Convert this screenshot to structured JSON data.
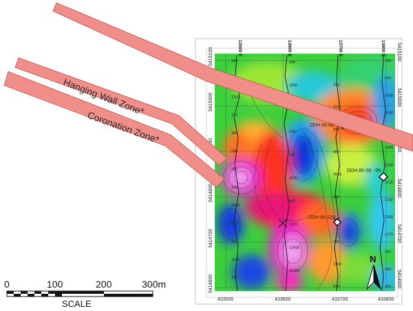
{
  "zones": [
    {
      "label": "Hanging Wall Zone*"
    },
    {
      "label": "Coronation Zone*"
    }
  ],
  "map": {
    "northing_labels": [
      "5415100",
      "5415000",
      "5414900",
      "5414800",
      "5414700",
      "5414600"
    ],
    "easting_labels": [
      "433500",
      "433600",
      "433700",
      "433800"
    ],
    "line_labels": [
      "13500 E",
      "13600 E",
      "13700 E",
      "13800 E"
    ],
    "drill_holes": [
      {
        "label": "DDH 85-66"
      },
      {
        "label": "DDH 85-59, -56"
      },
      {
        "label": "DDH 89-229"
      }
    ],
    "sample_values": {
      "line1": [
        "280",
        "270",
        "1110",
        "370",
        "350",
        "280",
        "250",
        "100",
        "2500",
        "810",
        "860",
        "1240",
        "700"
      ],
      "line2": [
        "290",
        "1050",
        "460",
        "370",
        "530",
        "1000",
        "420",
        "1120",
        "12500",
        "10300"
      ],
      "line3": [
        "370",
        "470",
        "550",
        "860",
        "2600",
        "640",
        "590",
        "720",
        "1160",
        "540"
      ],
      "line4": [
        "290",
        "640",
        "2440",
        "2250",
        "1110",
        "1340",
        "1320",
        "1130",
        "1130",
        "1360",
        "1270",
        "990",
        "560",
        "330"
      ]
    }
  },
  "scale": {
    "ticks": [
      "0",
      "100",
      "200",
      "300m"
    ],
    "caption": "SCALE"
  },
  "north_arrow": {
    "label": "N"
  },
  "colors": {
    "zone_fill": "#f08f8a",
    "zone_stroke": "#c04a45"
  }
}
